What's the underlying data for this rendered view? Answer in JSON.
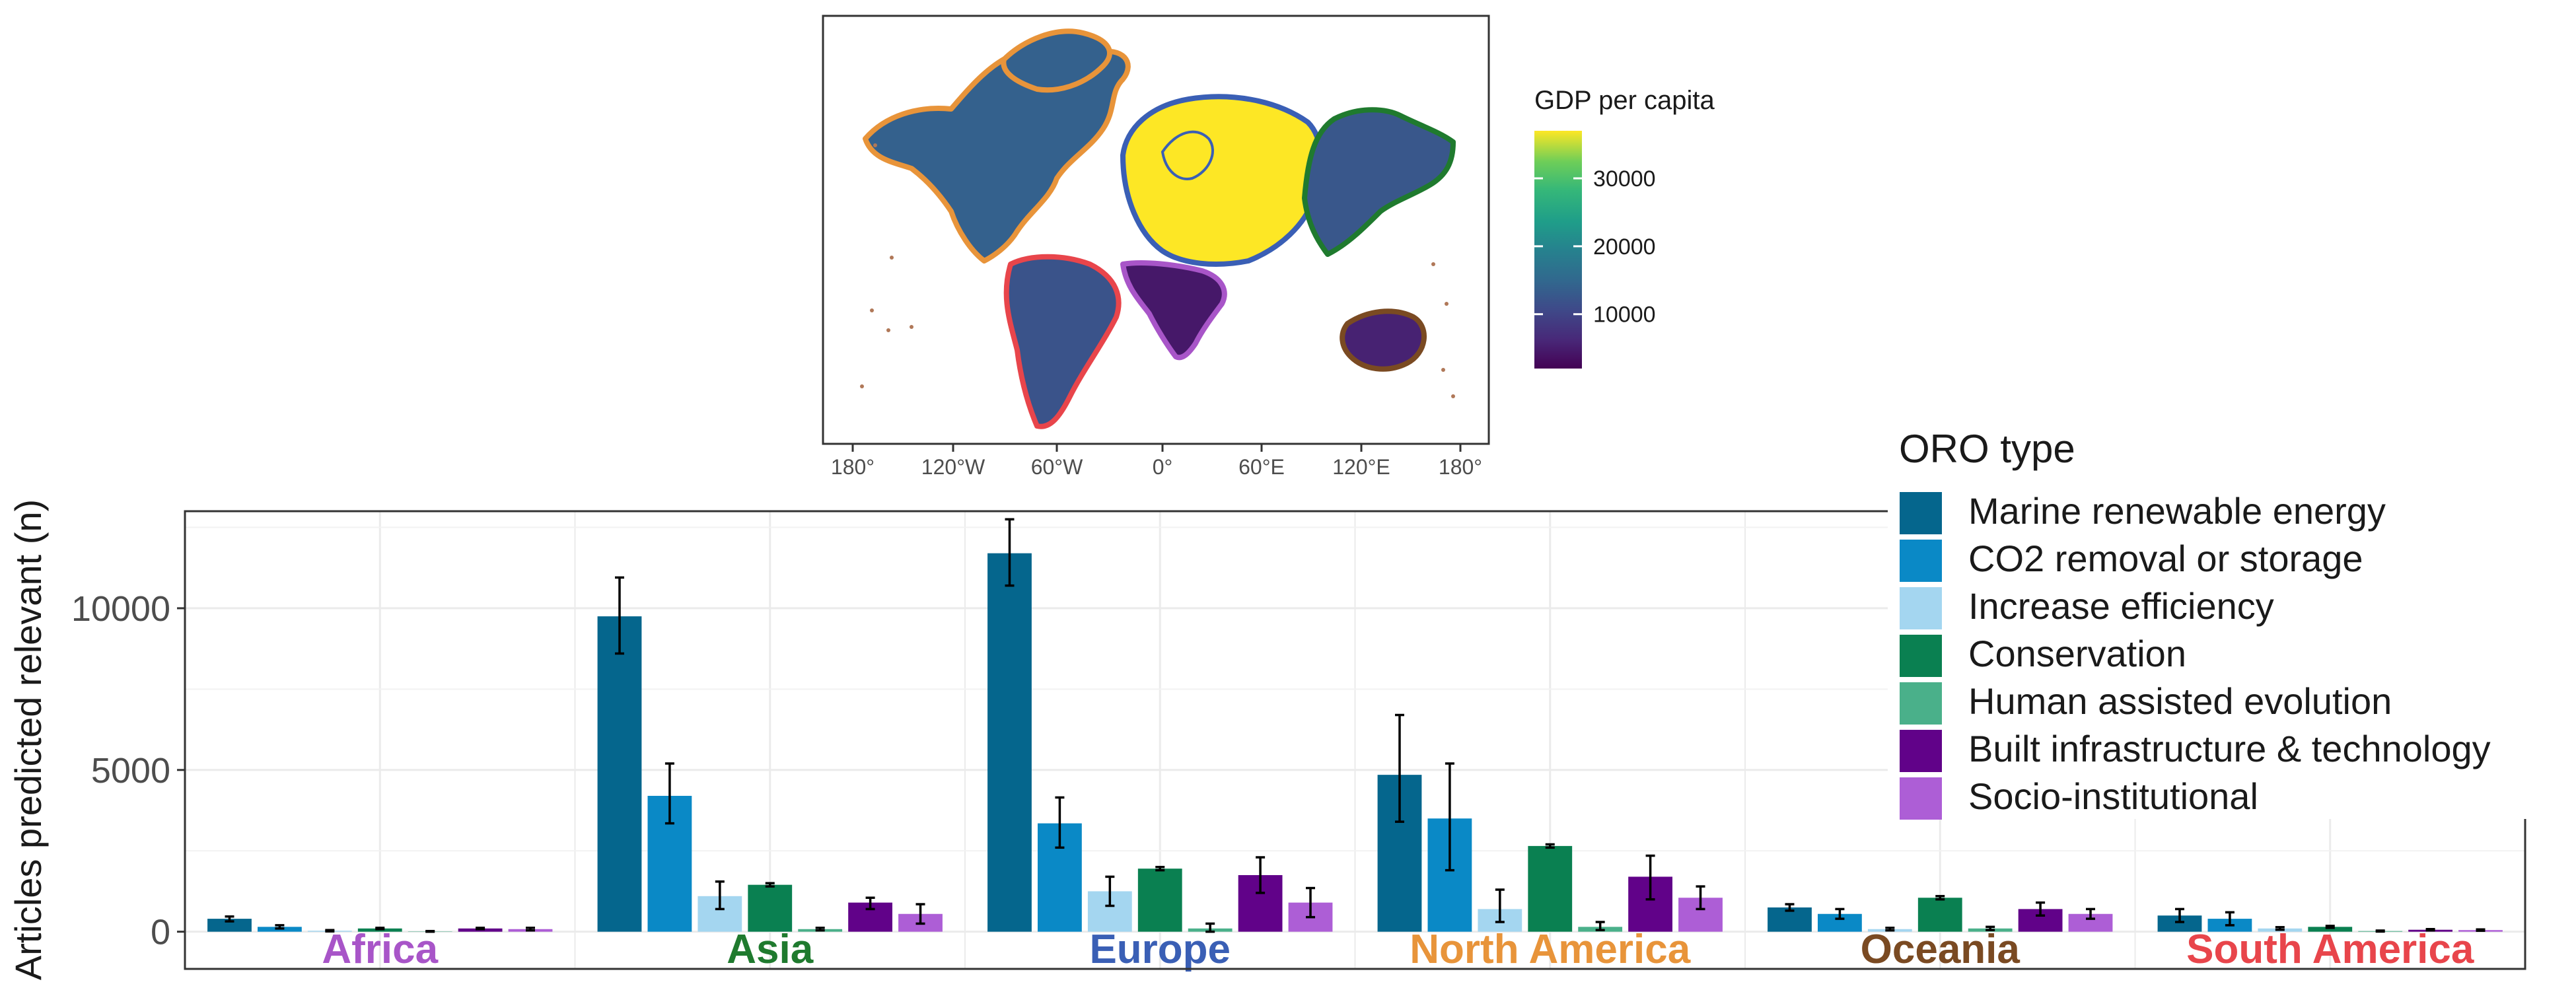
{
  "map": {
    "x_ticks": [
      "180°",
      "120°W",
      "60°W",
      "0°",
      "60°E",
      "120°E",
      "180°"
    ],
    "legend_title": "GDP per capita",
    "legend_ticks": [
      "30000",
      "20000",
      "10000"
    ],
    "legend_tick_values": [
      30000,
      20000,
      10000
    ],
    "color_range": [
      2000,
      37000
    ],
    "colors": {
      "low": "#440154",
      "mid": "#21918c",
      "high": "#fde725"
    },
    "regions": [
      {
        "name": "North America",
        "gdp": 14000,
        "outline": "#e8943a"
      },
      {
        "name": "South America",
        "gdp": 12000,
        "outline": "#e8454b"
      },
      {
        "name": "Europe",
        "gdp": 37000,
        "outline": "#3a5fb5"
      },
      {
        "name": "Asia",
        "gdp": 12500,
        "outline": "#1f7a2e"
      },
      {
        "name": "Africa",
        "gdp": 4500,
        "outline": "#a855c8"
      },
      {
        "name": "Oceania",
        "gdp": 5500,
        "outline": "#7a4a22"
      }
    ]
  },
  "chart_data": {
    "type": "bar",
    "ylabel": "Articles predicted relevant (n)",
    "ylim": [
      -1150,
      13000
    ],
    "y_ticks": [
      0,
      5000,
      10000
    ],
    "y_tick_labels": [
      "0",
      "5000",
      "10000"
    ],
    "grid": true,
    "categories": [
      "Africa",
      "Asia",
      "Europe",
      "North America",
      "Oceania",
      "South America"
    ],
    "category_colors": [
      "#a855c8",
      "#1f7a2e",
      "#3a5fb5",
      "#e8943a",
      "#7a4a22",
      "#e8454b"
    ],
    "legend_title": "ORO type",
    "legend_position": "top-right",
    "series": [
      {
        "name": "Marine renewable energy",
        "color": "#05668d",
        "values": [
          400,
          9750,
          11700,
          4850,
          750,
          500
        ],
        "err_low": [
          320,
          8600,
          10700,
          3400,
          650,
          300
        ],
        "err_high": [
          470,
          10950,
          12750,
          6700,
          850,
          700
        ]
      },
      {
        "name": "CO2 removal or storage",
        "color": "#0a89c6",
        "values": [
          150,
          4200,
          3350,
          3500,
          550,
          400
        ],
        "err_low": [
          100,
          3350,
          2600,
          1900,
          400,
          200
        ],
        "err_high": [
          200,
          5200,
          4150,
          5200,
          700,
          600
        ]
      },
      {
        "name": "Increase efficiency",
        "color": "#a4d6f0",
        "values": [
          30,
          1100,
          1250,
          700,
          80,
          100
        ],
        "err_low": [
          10,
          700,
          800,
          300,
          40,
          60
        ],
        "err_high": [
          50,
          1550,
          1700,
          1300,
          120,
          140
        ]
      },
      {
        "name": "Conservation",
        "color": "#0a8051",
        "values": [
          100,
          1450,
          1950,
          2650,
          1050,
          150
        ],
        "err_low": [
          80,
          1400,
          1900,
          2600,
          1000,
          120
        ],
        "err_high": [
          120,
          1500,
          2000,
          2700,
          1100,
          180
        ]
      },
      {
        "name": "Human assisted evolution",
        "color": "#4ab08a",
        "values": [
          10,
          80,
          100,
          150,
          100,
          20
        ],
        "err_low": [
          0,
          40,
          0,
          50,
          50,
          5
        ],
        "err_high": [
          20,
          120,
          250,
          300,
          150,
          35
        ]
      },
      {
        "name": "Built infrastructure & technology",
        "color": "#610289",
        "values": [
          100,
          900,
          1750,
          1700,
          700,
          60
        ],
        "err_low": [
          80,
          700,
          1200,
          1000,
          500,
          40
        ],
        "err_high": [
          120,
          1050,
          2300,
          2350,
          900,
          80
        ]
      },
      {
        "name": "Socio-institutional",
        "color": "#ad5ed6",
        "values": [
          80,
          550,
          900,
          1050,
          550,
          50
        ],
        "err_low": [
          40,
          250,
          450,
          700,
          400,
          30
        ],
        "err_high": [
          120,
          850,
          1350,
          1400,
          700,
          70
        ]
      }
    ]
  }
}
